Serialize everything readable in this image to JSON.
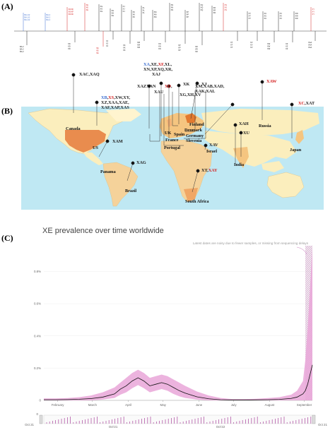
{
  "panels": {
    "a": "(A)",
    "b": "(B)",
    "c": "(C)"
  },
  "colors": {
    "ocean": "#bfe8f3",
    "land_light": "#fbeebd",
    "land_mid": "#f5c580",
    "land_dark": "#e98c4e",
    "land_pale": "#fff4cf",
    "band": "#e9a6d8",
    "line": "#111111",
    "blue": "#3c6fd1",
    "red": "#d42020"
  },
  "timeline": {
    "top_labels": [
      {
        "t": "BA.1/2",
        "c": "blue"
      },
      {
        "t": "BA.2",
        "c": "blue"
      },
      {
        "t": "XD/XF",
        "c": "red"
      },
      {
        "t": "XE",
        "c": "red"
      },
      {
        "t": "XG",
        "c": "black"
      },
      {
        "t": "XH",
        "c": "black"
      },
      {
        "t": "XJ",
        "c": "black"
      },
      {
        "t": "XK",
        "c": "black"
      },
      {
        "t": "XL",
        "c": "black"
      },
      {
        "t": "XM",
        "c": "black"
      },
      {
        "t": "XN",
        "c": "black"
      },
      {
        "t": "XP",
        "c": "black"
      },
      {
        "t": "XQ",
        "c": "black"
      },
      {
        "t": "XR",
        "c": "black"
      },
      {
        "t": "XS",
        "c": "red"
      },
      {
        "t": "XT",
        "c": "black"
      },
      {
        "t": "XU",
        "c": "black"
      },
      {
        "t": "XV",
        "c": "black"
      },
      {
        "t": "XW",
        "c": "black"
      },
      {
        "t": "XY",
        "c": "red"
      }
    ],
    "bottom_labels": [
      {
        "t": "BA.2",
        "c": "black"
      },
      {
        "t": "XD",
        "c": "black"
      },
      {
        "t": "XE",
        "c": "red"
      },
      {
        "t": "XJ",
        "c": "black"
      },
      {
        "t": "XK",
        "c": "black"
      },
      {
        "t": "XM",
        "c": "black"
      },
      {
        "t": "XN",
        "c": "black"
      },
      {
        "t": "XP",
        "c": "black"
      },
      {
        "t": "XR",
        "c": "black"
      },
      {
        "t": "XT",
        "c": "black"
      },
      {
        "t": "XV",
        "c": "black"
      },
      {
        "t": "XW",
        "c": "black"
      },
      {
        "t": "XZ",
        "c": "black"
      },
      {
        "t": "XAA",
        "c": "black"
      }
    ]
  },
  "map_labels": [
    {
      "name": "xac-xaq",
      "parts": [
        {
          "t": "XAC,XAQ",
          "c": "black"
        }
      ]
    },
    {
      "name": "xa-list",
      "parts": [
        {
          "t": "XA",
          "c": "blue"
        },
        {
          "t": ",XE,",
          "c": "black"
        },
        {
          "t": "XF",
          "c": "red"
        },
        {
          "t": ",XL,",
          "c": "black"
        }
      ]
    },
    {
      "name": "xn-list",
      "parts": [
        {
          "t": "XN,XP,XQ,XR,",
          "c": "black"
        }
      ]
    },
    {
      "name": "xaj",
      "parts": [
        {
          "t": "XAJ",
          "c": "black"
        }
      ]
    },
    {
      "name": "xaw",
      "parts": [
        {
          "t": "XAW",
          "c": "red"
        }
      ]
    },
    {
      "name": "xaz-xan",
      "parts": [
        {
          "t": "XAZ",
          "c": "black"
        },
        {
          "t": "XAN",
          "c": "black"
        }
      ]
    },
    {
      "name": "xd",
      "parts": [
        {
          "t": "XD",
          "c": "red"
        },
        {
          "t": ",",
          "c": "black"
        }
      ]
    },
    {
      "name": "xk",
      "parts": [
        {
          "t": "XK",
          "c": "black"
        }
      ]
    },
    {
      "name": "xj",
      "parts": [
        {
          "t": "XJ",
          "c": "black"
        }
      ]
    },
    {
      "name": "xau",
      "parts": [
        {
          "t": "XAU",
          "c": "black"
        }
      ]
    },
    {
      "name": "xg-xv",
      "parts": [
        {
          "t": "XG,XH,XV",
          "c": "black"
        }
      ]
    },
    {
      "name": "xm-list",
      "parts": [
        {
          "t": "XM,XAB,XAD,",
          "c": "black"
        }
      ]
    },
    {
      "name": "xak-list",
      "parts": [
        {
          "t": "XAK,XAL",
          "c": "black"
        }
      ]
    },
    {
      "name": "xb-list",
      "parts": [
        {
          "t": "XB",
          "c": "blue"
        },
        {
          "t": ",",
          "c": "black"
        },
        {
          "t": "XS",
          "c": "red"
        },
        {
          "t": ",XW,XY,",
          "c": "black"
        }
      ]
    },
    {
      "name": "xz-list",
      "parts": [
        {
          "t": "XZ,XAA,XAE,",
          "c": "black"
        }
      ]
    },
    {
      "name": "xaf-list",
      "parts": [
        {
          "t": "XAF,XAP,XAS",
          "c": "black"
        }
      ]
    },
    {
      "name": "xah",
      "parts": [
        {
          "t": "XAH",
          "c": "black"
        }
      ]
    },
    {
      "name": "xc-xat",
      "parts": [
        {
          "t": "XC",
          "c": "red"
        },
        {
          "t": ",XAT",
          "c": "black"
        }
      ]
    },
    {
      "name": "xu",
      "parts": [
        {
          "t": "XU",
          "c": "black"
        }
      ]
    },
    {
      "name": "xam",
      "parts": [
        {
          "t": "XAM",
          "c": "black"
        }
      ]
    },
    {
      "name": "xav",
      "parts": [
        {
          "t": "XAV",
          "c": "black"
        }
      ]
    },
    {
      "name": "xag",
      "parts": [
        {
          "t": "XAG",
          "c": "black"
        }
      ]
    },
    {
      "name": "xt-xay",
      "parts": [
        {
          "t": "XT,",
          "c": "black"
        },
        {
          "t": "XAY",
          "c": "red"
        }
      ]
    }
  ],
  "countries": [
    "Canada",
    "US",
    "Panama",
    "Brazil",
    "Finland",
    "Denmark",
    "Germany",
    "Slovenia",
    "UK",
    "Spain",
    "France",
    "Portugal",
    "Israel",
    "India",
    "Russia",
    "Japan",
    "South Africa"
  ],
  "chart": {
    "title": "XE prevalence over time worldwide",
    "note": "Latest dates are noisy due to fewer samples, or missing from sequencing delays",
    "brush_left": "Oct 21",
    "brush_right": "Oct 21",
    "brush_mid1": "Oct'21",
    "brush_mid2": "Oct'22",
    "brush_zero": "0"
  },
  "chart_data": {
    "type": "area",
    "title": "XE prevalence over time worldwide",
    "xlabel": "",
    "ylabel": "",
    "x_ticks": [
      "February",
      "March",
      "April",
      "May",
      "June",
      "July",
      "August",
      "September"
    ],
    "y_ticks": [
      "0",
      "0.2%",
      "0.4%",
      "0.6%",
      "0.8%"
    ],
    "ylim": [
      0,
      0.96
    ],
    "grid": true,
    "x": [
      0,
      10,
      20,
      30,
      40,
      50,
      60,
      65,
      70,
      75,
      80,
      85,
      90,
      95,
      100,
      105,
      110,
      115,
      120,
      130,
      140,
      150,
      160,
      170,
      180,
      190,
      200,
      210,
      215,
      220,
      222,
      224,
      226,
      228
    ],
    "series": [
      {
        "values": [
          0.004,
          0.004,
          0.005,
          0.007,
          0.011,
          0.02,
          0.04,
          0.07,
          0.09,
          0.12,
          0.14,
          0.12,
          0.09,
          0.1,
          0.11,
          0.1,
          0.08,
          0.06,
          0.045,
          0.022,
          0.01,
          0.004,
          0.002,
          0.002,
          0.003,
          0.004,
          0.006,
          0.012,
          0.02,
          0.04,
          0.06,
          0.1,
          0.16,
          0.22
        ]
      },
      {
        "values": [
          0.012,
          0.012,
          0.014,
          0.02,
          0.03,
          0.05,
          0.08,
          0.11,
          0.14,
          0.17,
          0.19,
          0.17,
          0.14,
          0.15,
          0.16,
          0.15,
          0.13,
          0.11,
          0.09,
          0.055,
          0.03,
          0.015,
          0.008,
          0.008,
          0.01,
          0.014,
          0.02,
          0.035,
          0.06,
          0.12,
          0.25,
          0.45,
          0.7,
          0.95
        ]
      },
      {
        "values": [
          0.0,
          0.0,
          0.0,
          0.0,
          0.0,
          0.005,
          0.015,
          0.035,
          0.05,
          0.075,
          0.095,
          0.075,
          0.05,
          0.06,
          0.07,
          0.06,
          0.04,
          0.025,
          0.015,
          0.005,
          0.0,
          0.0,
          0.0,
          0.0,
          0.0,
          0.0,
          0.0,
          0.0,
          0.0,
          0.0,
          0.0,
          0.0,
          0.0,
          0.0
        ]
      }
    ]
  }
}
